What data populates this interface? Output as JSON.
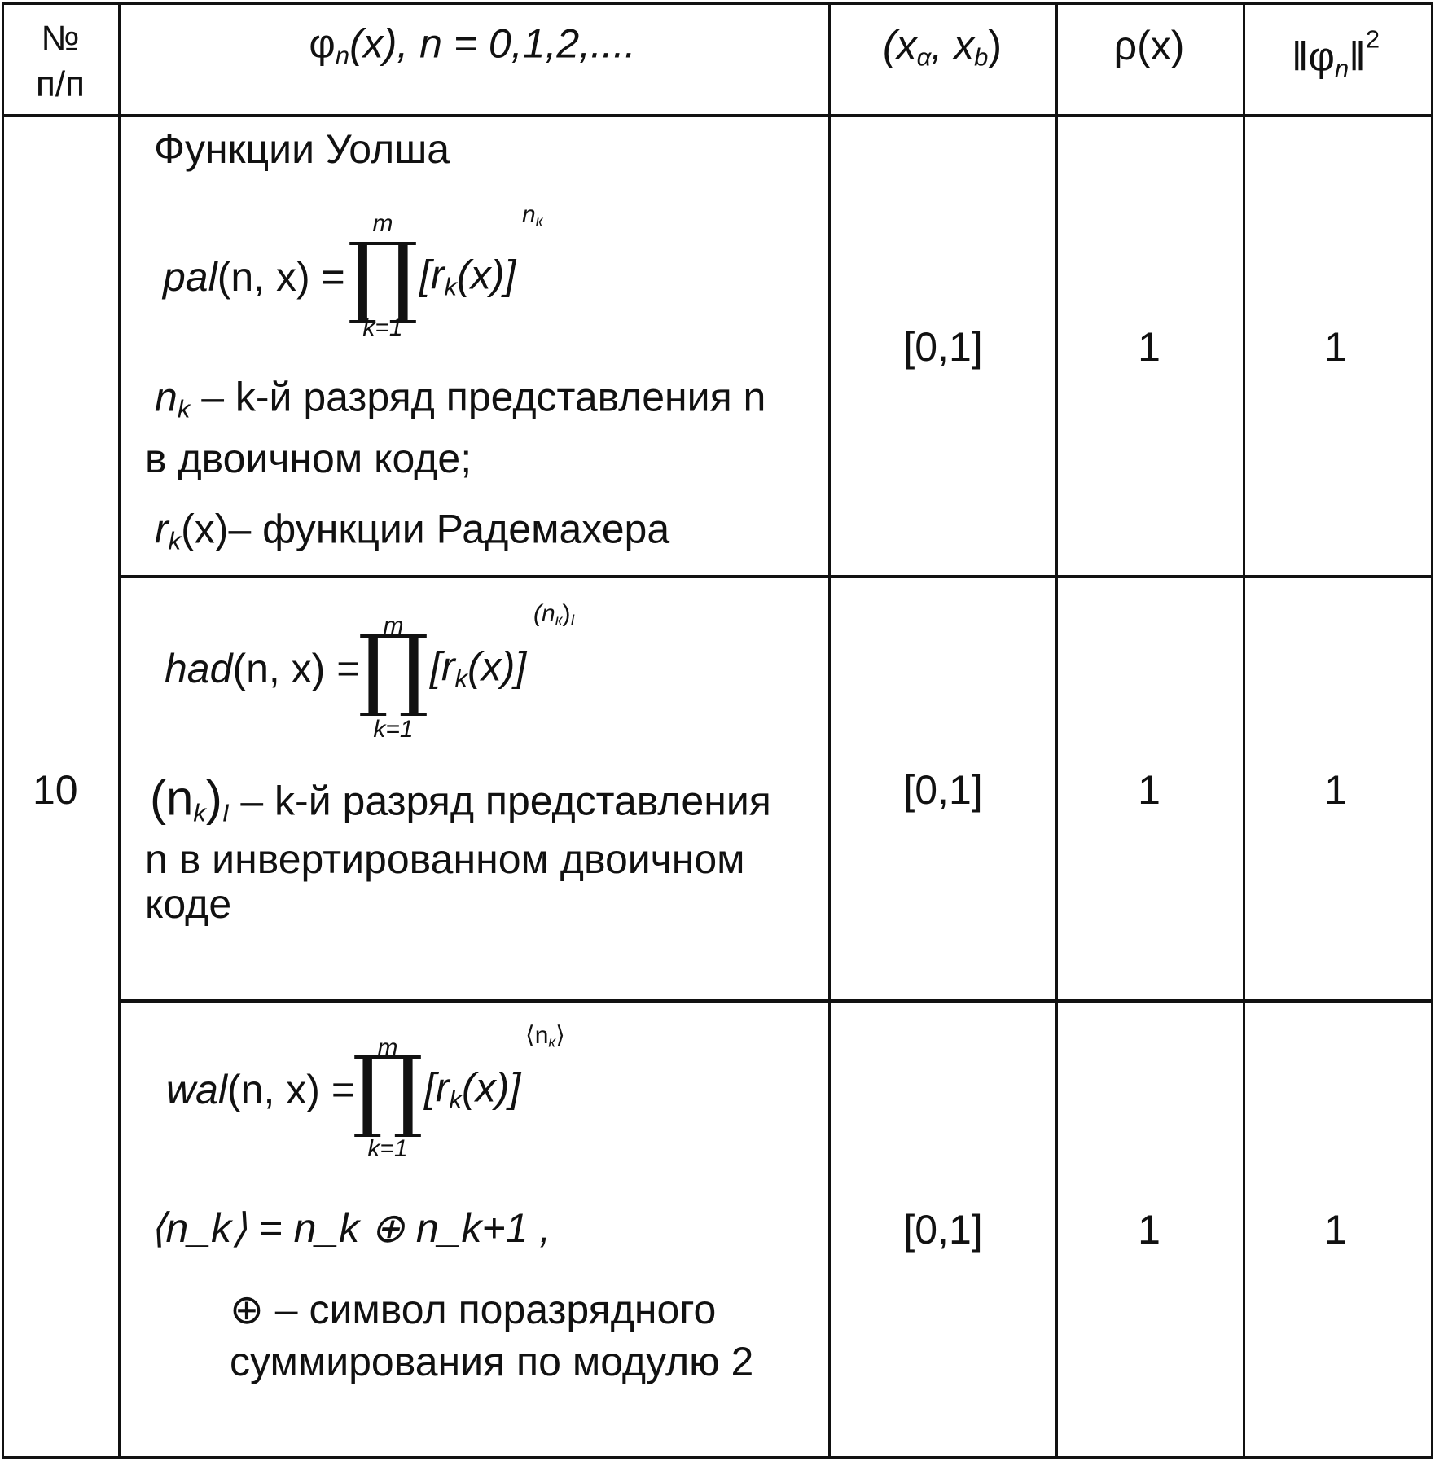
{
  "header": {
    "num": [
      "№",
      "п/п"
    ],
    "phi": "φ",
    "phi_sub": "n",
    "phi_rest": "(x), n = 0,1,2,....",
    "interval": "(x",
    "interval_a": "α",
    "interval_mid": ", x",
    "interval_b": "b",
    "interval_end": ")",
    "weight": "ρ(x)",
    "norm": "‖φ",
    "norm_sub": "n",
    "norm_end": "‖",
    "norm_sup": "2"
  },
  "row_number": "10",
  "section_title": "Функции Уолша",
  "rows": [
    {
      "func_name": "pal",
      "lhs": "(n, x) =",
      "prod": "∏",
      "upper": "m",
      "lower": "k=1",
      "bracket": "[r",
      "bracket_sub": "k",
      "bracket_end": "(x)]",
      "exponent": "n",
      "exponent_sub": "к",
      "lines": [
        {
          "pre": "n",
          "pre_sub": "k",
          "text": " – k-й разряд представления  n"
        },
        {
          "text": "в двоичном коде;"
        },
        {
          "pre": "r",
          "pre_sub": "k",
          "text": "(x)– функции Радемахера"
        }
      ],
      "interval": "[0,1]",
      "weight": "1",
      "norm": "1"
    },
    {
      "func_name": "had",
      "lhs": "(n, x) =",
      "prod": "∏",
      "upper": "m",
      "lower": "k=1",
      "bracket": "[r",
      "bracket_sub": "k",
      "bracket_end": "(x)]",
      "exponent": "(n",
      "exponent_sub": "к",
      "exponent_end": ")",
      "exponent_end_sub": "I",
      "lines": [
        {
          "pre": "(n",
          "pre_sub": "k",
          "pre_end": ")",
          "pre_end_sub": "I",
          "text": " – k-й разряд представления"
        },
        {
          "text": " n  в инвертированном двоичном"
        },
        {
          "text": "коде"
        }
      ],
      "interval": "[0,1]",
      "weight": "1",
      "norm": "1"
    },
    {
      "func_name": "wal",
      "lhs": "(n, x) =",
      "prod": "∏",
      "upper": "m",
      "lower": "k=1",
      "bracket": "[r",
      "bracket_sub": "k",
      "bracket_end": "(x)]",
      "exponent": "⟨n",
      "exponent_sub": "к",
      "exponent_end": "⟩",
      "lines": [
        {
          "text": "⟨n_k⟩ = n_k ⊕ n_k+1 ,"
        },
        {
          "text": "⊕   – символ поразрядного"
        },
        {
          "text": "суммирования по модулю 2"
        }
      ],
      "interval": "[0,1]",
      "weight": "1",
      "norm": "1"
    }
  ]
}
